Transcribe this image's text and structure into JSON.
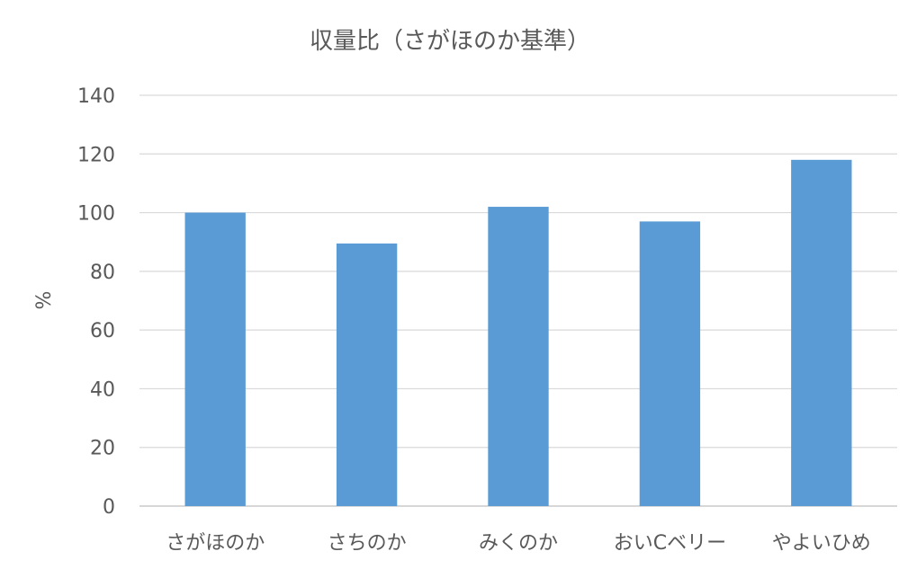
{
  "chart_data": {
    "type": "bar",
    "title": "収量比（さがほのか基準）",
    "xlabel": "",
    "ylabel": "%",
    "categories": [
      "さがほのか",
      "さちのか",
      "みくのか",
      "おいCベリー",
      "やよいひめ"
    ],
    "series": [
      {
        "values": [
          100,
          89.5,
          102,
          97,
          118
        ]
      }
    ],
    "ylim": [
      0,
      140
    ],
    "yticks": [
      0,
      20,
      40,
      60,
      80,
      100,
      120,
      140
    ],
    "grid": true,
    "bar_color": "#5b9bd5"
  }
}
